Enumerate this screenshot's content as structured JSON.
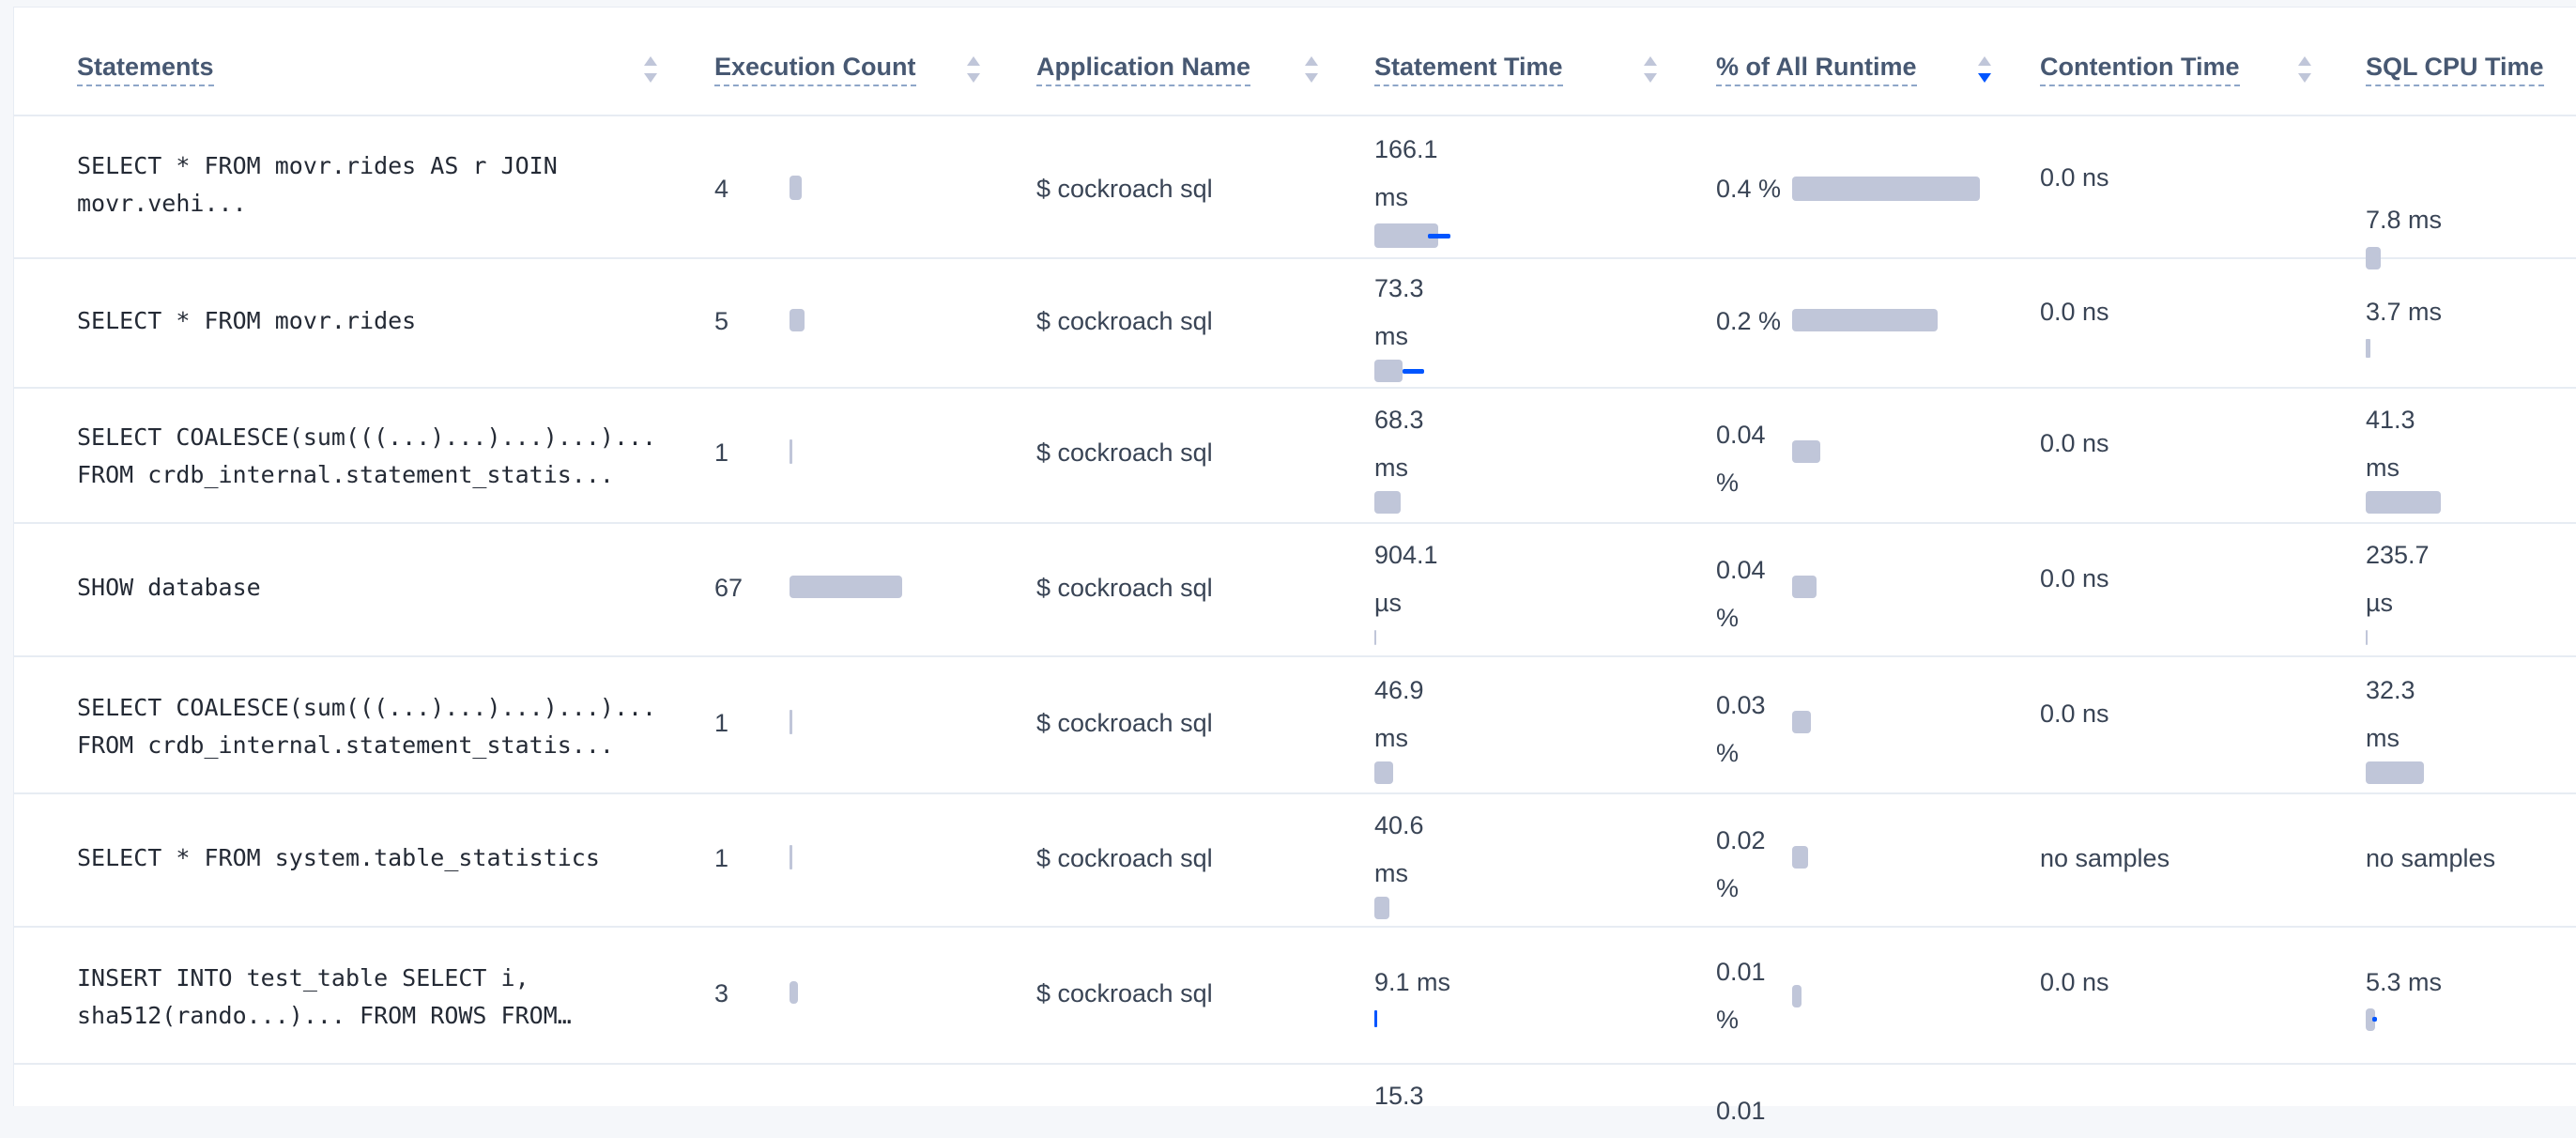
{
  "columns": [
    {
      "label": "Statements"
    },
    {
      "label": "Execution Count"
    },
    {
      "label": "Application Name"
    },
    {
      "label": "Statement Time"
    },
    {
      "label": "% of All Runtime"
    },
    {
      "label": "Contention Time"
    },
    {
      "label": "SQL CPU Time"
    }
  ],
  "sort": {
    "column": "% of All Runtime",
    "direction": "descending"
  },
  "colors": {
    "bar": "#c0c6d9",
    "accent": "#0055ff",
    "header_text": "#475872"
  },
  "rows": [
    {
      "statement_line1": "SELECT * FROM movr.rides AS r JOIN",
      "statement_line2": "movr.vehi...",
      "exec_count": "4",
      "app": "$ cockroach sql",
      "stmt_time_value": "166.1",
      "stmt_time_unit": "ms",
      "runtime_pct": "0.4 %",
      "contention": "0.0 ns",
      "cpu_value": "7.8 ms",
      "cpu_unit": ""
    },
    {
      "statement_line1": "SELECT * FROM movr.rides",
      "statement_line2": "",
      "exec_count": "5",
      "app": "$ cockroach sql",
      "stmt_time_value": "73.3",
      "stmt_time_unit": "ms",
      "runtime_pct": "0.2 %",
      "contention": "0.0 ns",
      "cpu_value": "3.7 ms",
      "cpu_unit": ""
    },
    {
      "statement_line1": "SELECT COALESCE(sum(((...)...)...)...)...",
      "statement_line2": "FROM crdb_internal.statement_statis...",
      "exec_count": "1",
      "app": "$ cockroach sql",
      "stmt_time_value": "68.3",
      "stmt_time_unit": "ms",
      "runtime_pct_value": "0.04",
      "runtime_pct_unit": "%",
      "contention": "0.0 ns",
      "cpu_value": "41.3",
      "cpu_unit": "ms"
    },
    {
      "statement_line1": "SHOW database",
      "statement_line2": "",
      "exec_count": "67",
      "app": "$ cockroach sql",
      "stmt_time_value": "904.1",
      "stmt_time_unit": "µs",
      "runtime_pct_value": "0.04",
      "runtime_pct_unit": "%",
      "contention": "0.0 ns",
      "cpu_value": "235.7",
      "cpu_unit": "µs"
    },
    {
      "statement_line1": "SELECT COALESCE(sum(((...)...)...)...)...",
      "statement_line2": "FROM crdb_internal.statement_statis...",
      "exec_count": "1",
      "app": "$ cockroach sql",
      "stmt_time_value": "46.9",
      "stmt_time_unit": "ms",
      "runtime_pct_value": "0.03",
      "runtime_pct_unit": "%",
      "contention": "0.0 ns",
      "cpu_value": "32.3",
      "cpu_unit": "ms"
    },
    {
      "statement_line1": "SELECT * FROM system.table_statistics",
      "statement_line2": "",
      "exec_count": "1",
      "app": "$ cockroach sql",
      "stmt_time_value": "40.6",
      "stmt_time_unit": "ms",
      "runtime_pct_value": "0.02",
      "runtime_pct_unit": "%",
      "contention": "no samples",
      "cpu_value": "no samples",
      "cpu_unit": ""
    },
    {
      "statement_line1": "INSERT INTO test_table SELECT i,",
      "statement_line2": "sha512(rando...)... FROM ROWS FROM…",
      "exec_count": "3",
      "app": "$ cockroach sql",
      "stmt_time_value": "9.1 ms",
      "stmt_time_unit": "",
      "runtime_pct_value": "0.01",
      "runtime_pct_unit": "%",
      "contention": "0.0 ns",
      "cpu_value": "5.3 ms",
      "cpu_unit": ""
    },
    {
      "statement_line1": "",
      "statement_line2": "",
      "exec_count": "",
      "app": "",
      "stmt_time_value": "15.3",
      "stmt_time_unit": "",
      "runtime_pct_value": "0.01",
      "runtime_pct_unit": "",
      "contention": "",
      "cpu_value": "",
      "cpu_unit": ""
    }
  ]
}
